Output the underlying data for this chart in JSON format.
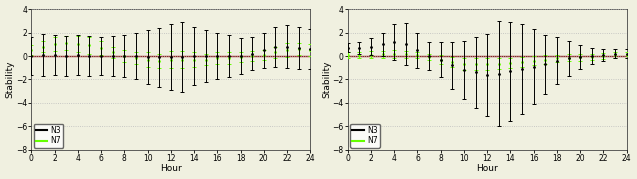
{
  "hours": [
    0,
    1,
    2,
    3,
    4,
    5,
    6,
    7,
    8,
    9,
    10,
    11,
    12,
    13,
    14,
    15,
    16,
    17,
    18,
    19,
    20,
    21,
    22,
    23,
    24
  ],
  "panel_a": {
    "N3_mean": [
      0.0,
      0.1,
      0.1,
      0.0,
      0.1,
      0.0,
      0.0,
      0.0,
      0.0,
      0.0,
      -0.1,
      -0.1,
      -0.1,
      -0.1,
      0.0,
      0.0,
      0.0,
      0.0,
      0.0,
      0.2,
      0.5,
      0.8,
      0.8,
      0.7,
      0.6
    ],
    "N3_err": [
      1.6,
      1.8,
      1.7,
      1.7,
      1.7,
      1.7,
      1.6,
      1.7,
      1.8,
      2.0,
      2.3,
      2.5,
      2.8,
      3.0,
      2.5,
      2.2,
      2.0,
      1.8,
      1.5,
      1.4,
      1.5,
      1.7,
      1.8,
      1.8,
      1.7
    ],
    "N7_mean": [
      0.5,
      0.8,
      1.0,
      1.1,
      1.0,
      0.9,
      0.7,
      0.3,
      0.0,
      -0.2,
      -0.3,
      -0.4,
      -0.3,
      -0.3,
      -0.3,
      -0.3,
      -0.2,
      -0.2,
      -0.1,
      0.0,
      0.1,
      0.3,
      0.5,
      0.6,
      0.5
    ],
    "N7_err": [
      0.4,
      0.5,
      0.6,
      0.6,
      0.7,
      0.7,
      0.6,
      0.5,
      0.5,
      0.5,
      0.6,
      0.6,
      0.7,
      0.7,
      0.6,
      0.5,
      0.5,
      0.5,
      0.4,
      0.4,
      0.4,
      0.5,
      0.6,
      0.5,
      0.5
    ]
  },
  "panel_b": {
    "N3_mean": [
      0.7,
      0.7,
      0.8,
      1.0,
      1.2,
      1.0,
      0.5,
      0.0,
      -0.3,
      -0.8,
      -1.2,
      -1.4,
      -1.6,
      -1.5,
      -1.3,
      -1.1,
      -0.9,
      -0.7,
      -0.4,
      -0.2,
      -0.1,
      0.0,
      0.1,
      0.2,
      0.2
    ],
    "N3_err": [
      0.4,
      0.5,
      0.7,
      1.0,
      1.5,
      1.8,
      1.5,
      1.2,
      1.5,
      2.0,
      2.5,
      3.0,
      3.5,
      4.5,
      4.2,
      3.8,
      3.2,
      2.5,
      2.0,
      1.5,
      1.0,
      0.7,
      0.5,
      0.4,
      0.4
    ],
    "N7_mean": [
      0.05,
      0.05,
      0.1,
      0.15,
      0.2,
      0.15,
      0.05,
      -0.05,
      -0.3,
      -0.5,
      -0.7,
      -0.7,
      -0.7,
      -0.65,
      -0.6,
      -0.5,
      -0.4,
      -0.3,
      -0.2,
      -0.15,
      -0.1,
      -0.05,
      0.0,
      0.05,
      0.05
    ],
    "N7_err": [
      0.25,
      0.25,
      0.3,
      0.3,
      0.35,
      0.3,
      0.25,
      0.25,
      0.35,
      0.45,
      0.5,
      0.5,
      0.5,
      0.5,
      0.45,
      0.4,
      0.4,
      0.35,
      0.3,
      0.3,
      0.3,
      0.25,
      0.25,
      0.25,
      0.25
    ]
  },
  "ylim": [
    -8,
    4
  ],
  "yticks": [
    -8,
    -6,
    -4,
    -2,
    0,
    2,
    4
  ],
  "xlim": [
    0,
    24
  ],
  "xticks": [
    0,
    2,
    4,
    6,
    8,
    10,
    12,
    14,
    16,
    18,
    20,
    22,
    24
  ],
  "xlabel": "Hour",
  "ylabel": "Stability",
  "N3_color": "#000000",
  "N7_color": "#66ff00",
  "ref_color": "#8B2020",
  "background": "#f0f0e0",
  "grid_color": "#bbbbbb",
  "figsize": [
    6.37,
    1.79
  ],
  "dpi": 100
}
